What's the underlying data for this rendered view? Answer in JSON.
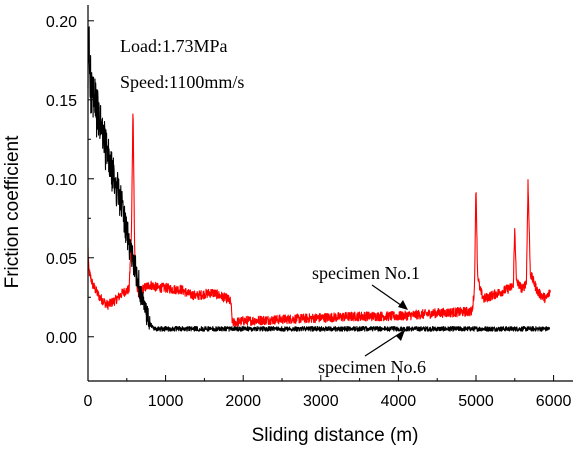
{
  "chart_data": {
    "type": "line",
    "title": "",
    "xlabel": "Sliding distance (m)",
    "ylabel": "Friction coefficient",
    "xlim": [
      0,
      6250
    ],
    "ylim": [
      -0.028,
      0.21
    ],
    "x_ticks": [
      0,
      1000,
      2000,
      3000,
      4000,
      5000,
      6000
    ],
    "x_tick_labels": [
      "0",
      "1000",
      "2000",
      "3000",
      "4000",
      "5000",
      "6000"
    ],
    "y_ticks": [
      0.0,
      0.05,
      0.1,
      0.15,
      0.2
    ],
    "y_tick_labels": [
      "0.00",
      "0.05",
      "0.10",
      "0.15",
      "0.20"
    ],
    "grid": false,
    "annotations": [
      {
        "id": "load",
        "text": "Load:1.73MPa"
      },
      {
        "id": "speed",
        "text": "Speed:1100mm/s"
      },
      {
        "id": "spec1",
        "text": "specimen No.1"
      },
      {
        "id": "spec6",
        "text": "specimen No.6"
      }
    ],
    "series": [
      {
        "name": "specimen No.1",
        "color": "#ff0000",
        "noise": 0.003,
        "x": [
          0,
          10,
          60,
          150,
          250,
          350,
          450,
          530,
          560,
          580,
          600,
          620,
          650,
          700,
          800,
          900,
          1000,
          1100,
          1200,
          1300,
          1400,
          1500,
          1600,
          1700,
          1800,
          1840,
          1860,
          1900,
          2000,
          2500,
          3000,
          3500,
          4000,
          4500,
          4950,
          4980,
          5000,
          5020,
          5050,
          5100,
          5200,
          5300,
          5400,
          5480,
          5500,
          5520,
          5600,
          5650,
          5670,
          5700,
          5800,
          5900,
          5950,
          5960
        ],
        "y": [
          0.056,
          0.042,
          0.033,
          0.025,
          0.02,
          0.023,
          0.028,
          0.03,
          0.065,
          0.148,
          0.058,
          0.035,
          0.028,
          0.03,
          0.033,
          0.031,
          0.031,
          0.03,
          0.03,
          0.027,
          0.026,
          0.027,
          0.028,
          0.026,
          0.024,
          0.022,
          0.009,
          0.009,
          0.01,
          0.011,
          0.012,
          0.013,
          0.013,
          0.015,
          0.016,
          0.03,
          0.097,
          0.04,
          0.03,
          0.024,
          0.026,
          0.028,
          0.03,
          0.032,
          0.07,
          0.035,
          0.03,
          0.035,
          0.098,
          0.04,
          0.028,
          0.024,
          0.028,
          0.029
        ]
      },
      {
        "name": "specimen No.6",
        "color": "#000000",
        "noise": 0.0015,
        "x": [
          0,
          10,
          20,
          40,
          100,
          200,
          300,
          400,
          450,
          500,
          550,
          600,
          650,
          700,
          750,
          800,
          850,
          900,
          1000,
          1500,
          1800,
          1850,
          2000,
          3000,
          4000,
          5000,
          5500,
          5950
        ],
        "y": [
          0.15,
          0.2,
          0.175,
          0.155,
          0.145,
          0.125,
          0.105,
          0.09,
          0.08,
          0.065,
          0.055,
          0.045,
          0.035,
          0.022,
          0.015,
          0.008,
          0.005,
          0.005,
          0.005,
          0.005,
          0.005,
          0.005,
          0.005,
          0.005,
          0.005,
          0.005,
          0.005,
          0.005
        ]
      }
    ]
  }
}
